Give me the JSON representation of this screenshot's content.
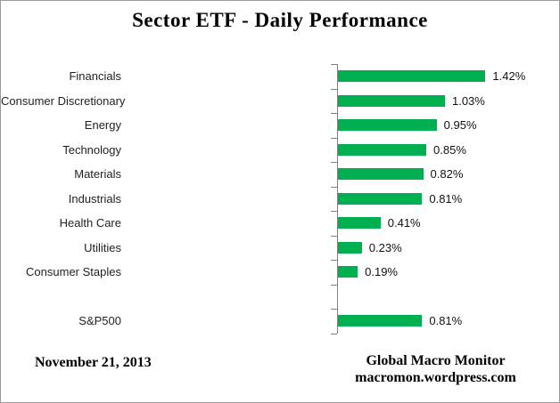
{
  "title": "Sector ETF - Daily Performance",
  "footer": {
    "date": "November 21, 2013",
    "source_line1": "Global Macro Monitor",
    "source_line2": "macromon.wordpress.com"
  },
  "colors": {
    "bar": "#00B050",
    "axis": "#808080",
    "frame_border": "#9b9b9b",
    "text": "#000000"
  },
  "chart_data": {
    "type": "bar",
    "orientation": "horizontal",
    "title": "Sector ETF - Daily Performance",
    "xlabel": "",
    "ylabel": "",
    "grid": false,
    "legend": false,
    "xlim": [
      0,
      1.7
    ],
    "unit": "percent",
    "categories": [
      "Financials",
      "Consumer Discretionary",
      "Energy",
      "Technology",
      "Materials",
      "Industrials",
      "Health Care",
      "Utilities",
      "Consumer Staples",
      "",
      "S&P500"
    ],
    "values": [
      1.42,
      1.03,
      0.95,
      0.85,
      0.82,
      0.81,
      0.41,
      0.23,
      0.19,
      null,
      0.81
    ],
    "value_labels": [
      "1.42%",
      "1.03%",
      "0.95%",
      "0.85%",
      "0.82%",
      "0.81%",
      "0.41%",
      "0.23%",
      "0.19%",
      "",
      "0.81%"
    ]
  }
}
